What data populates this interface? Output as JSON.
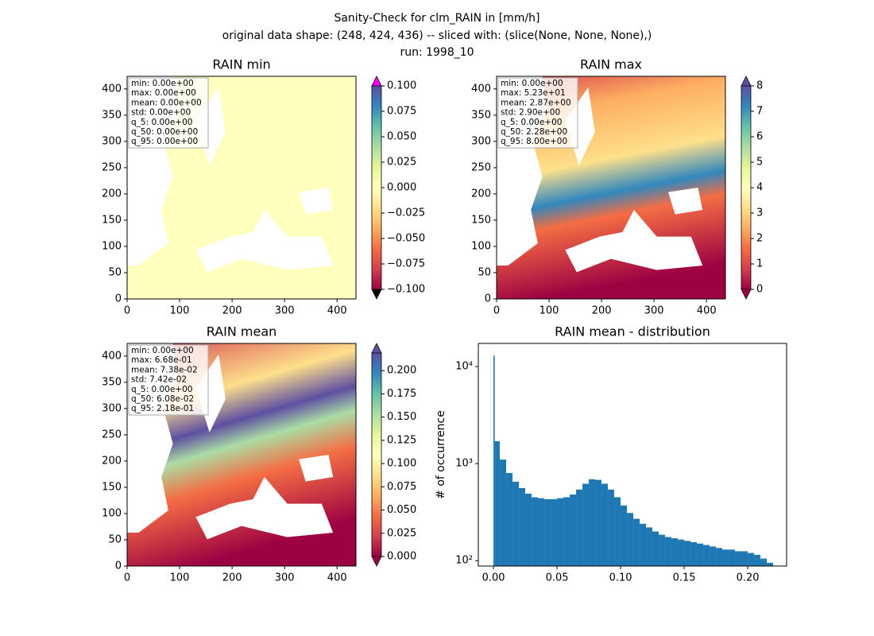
{
  "title_lines": [
    "Sanity-Check for clm_RAIN in [mm/h]",
    "original data shape: (248, 424, 436) -- sliced with: (slice(None, None, None),)",
    "run: 1998_10"
  ],
  "chart_data": [
    {
      "type": "heatmap",
      "title": "RAIN min",
      "xlim": [
        0,
        436
      ],
      "ylim": [
        0,
        424
      ],
      "xticks": [
        0,
        100,
        200,
        300,
        400
      ],
      "yticks": [
        0,
        50,
        100,
        150,
        200,
        250,
        300,
        350,
        400
      ],
      "colorbar": {
        "lim": [
          -0.1,
          0.1
        ],
        "extend_colors": [
          "#000000",
          "#ff00ff"
        ],
        "ticks": [
          {
            "value": -0.1,
            "label": "−0.100"
          },
          {
            "value": -0.075,
            "label": "−0.075"
          },
          {
            "value": -0.05,
            "label": "−0.050"
          },
          {
            "value": -0.025,
            "label": "−0.025"
          },
          {
            "value": 0,
            "label": "0.000"
          },
          {
            "value": 0.025,
            "label": "0.025"
          },
          {
            "value": 0.05,
            "label": "0.050"
          },
          {
            "value": 0.075,
            "label": "0.075"
          },
          {
            "value": 0.1,
            "label": "0.100"
          }
        ]
      },
      "stats": [
        "min: 0.00e+00",
        "max: 0.00e+00",
        "mean: 0.00e+00",
        "std: 0.00e+00",
        "q_5: 0.00e+00",
        "q_50: 0.00e+00",
        "q_95: 0.00e+00"
      ]
    },
    {
      "type": "heatmap",
      "title": "RAIN max",
      "xlim": [
        0,
        436
      ],
      "ylim": [
        0,
        424
      ],
      "xticks": [
        0,
        100,
        200,
        300,
        400
      ],
      "yticks": [
        0,
        50,
        100,
        150,
        200,
        250,
        300,
        350,
        400
      ],
      "colorbar": {
        "lim": [
          0,
          8
        ],
        "extend_colors": [
          "#9e0142",
          "#5e4fa2"
        ],
        "ticks": [
          0,
          1,
          2,
          3,
          4,
          5,
          6,
          7,
          8
        ]
      },
      "stats": [
        "min: 0.00e+00",
        "max: 5.23e+01",
        "mean: 2.87e+00",
        "std: 2.90e+00",
        "q_5: 0.00e+00",
        "q_50: 2.28e+00",
        "q_95: 8.00e+00"
      ]
    },
    {
      "type": "heatmap",
      "title": "RAIN mean",
      "xlim": [
        0,
        436
      ],
      "ylim": [
        0,
        424
      ],
      "xticks": [
        0,
        100,
        200,
        300,
        400
      ],
      "yticks": [
        0,
        50,
        100,
        150,
        200,
        250,
        300,
        350,
        400
      ],
      "colorbar": {
        "lim": [
          0,
          0.219
        ],
        "extend_colors": [
          "#9e0142",
          "#5e4fa2"
        ],
        "ticks": [
          {
            "value": 0,
            "label": "0.000"
          },
          {
            "value": 0.025,
            "label": "0.025"
          },
          {
            "value": 0.05,
            "label": "0.050"
          },
          {
            "value": 0.075,
            "label": "0.075"
          },
          {
            "value": 0.1,
            "label": "0.100"
          },
          {
            "value": 0.125,
            "label": "0.125"
          },
          {
            "value": 0.15,
            "label": "0.150"
          },
          {
            "value": 0.175,
            "label": "0.175"
          },
          {
            "value": 0.2,
            "label": "0.200"
          }
        ]
      },
      "stats": [
        "min: 0.00e+00",
        "max: 6.68e-01",
        "mean: 7.38e-02",
        "std: 7.42e-02",
        "q_5: 0.00e+00",
        "q_50: 6.08e-02",
        "q_95: 2.18e-01"
      ]
    },
    {
      "type": "histogram",
      "title": "RAIN mean - distribution",
      "ylabel": "# of occurrence",
      "color": "#1f77b4",
      "log_y": true,
      "xlim": [
        -0.0119,
        0.2306
      ],
      "ylim": [
        88,
        17300
      ],
      "xticks": [
        {
          "value": 0,
          "label": "0.00"
        },
        {
          "value": 0.05,
          "label": "0.05"
        },
        {
          "value": 0.1,
          "label": "0.10"
        },
        {
          "value": 0.15,
          "label": "0.15"
        },
        {
          "value": 0.2,
          "label": "0.20"
        }
      ],
      "yticks": [
        {
          "value": 100,
          "label": "10²"
        },
        {
          "value": 1000,
          "label": "10³"
        },
        {
          "value": 10000,
          "label": "10⁴"
        }
      ],
      "bins": [
        0,
        0.001,
        0.005,
        0.01,
        0.015,
        0.02,
        0.025,
        0.03,
        0.035,
        0.04,
        0.045,
        0.05,
        0.055,
        0.06,
        0.065,
        0.07,
        0.075,
        0.08,
        0.085,
        0.09,
        0.095,
        0.1,
        0.105,
        0.11,
        0.115,
        0.12,
        0.125,
        0.13,
        0.135,
        0.14,
        0.145,
        0.15,
        0.155,
        0.16,
        0.165,
        0.17,
        0.175,
        0.18,
        0.185,
        0.19,
        0.195,
        0.2,
        0.205,
        0.21,
        0.215,
        0.22
      ],
      "counts": [
        13000,
        1700,
        1100,
        800,
        650,
        560,
        490,
        450,
        440,
        430,
        430,
        440,
        450,
        480,
        540,
        620,
        690,
        680,
        620,
        540,
        450,
        370,
        310,
        270,
        240,
        220,
        200,
        185,
        175,
        170,
        165,
        160,
        155,
        150,
        145,
        140,
        135,
        130,
        130,
        125,
        125,
        120,
        115,
        105,
        95
      ]
    }
  ]
}
